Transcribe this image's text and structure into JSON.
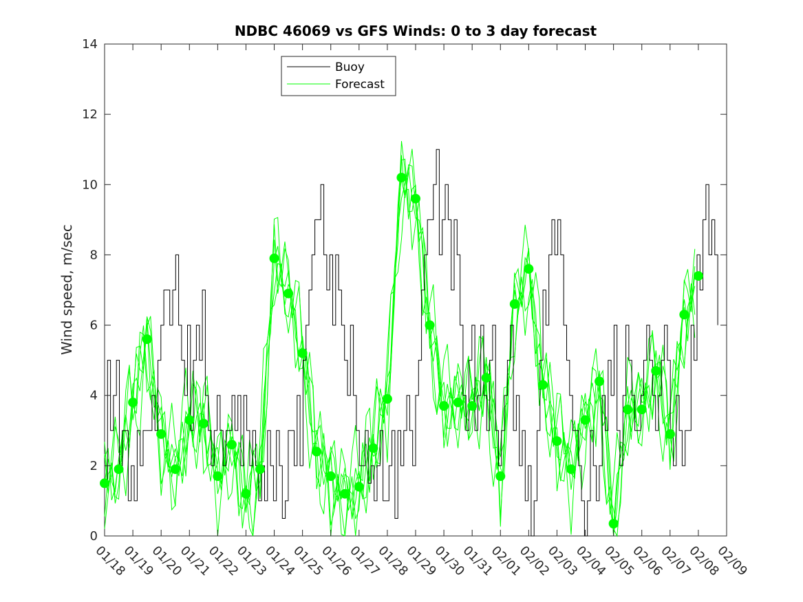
{
  "chart_data": {
    "type": "line",
    "title": "NDBC 46069 vs GFS Winds: 0 to 3 day forecast",
    "xlabel": "",
    "ylabel": "Wind speed, m/sec",
    "ylim": [
      0,
      14
    ],
    "yticks": [
      "0",
      "2",
      "4",
      "6",
      "8",
      "10",
      "12",
      "14"
    ],
    "xticks": [
      "01/18",
      "01/19",
      "01/20",
      "01/21",
      "01/22",
      "01/23",
      "01/24",
      "01/25",
      "01/26",
      "01/27",
      "01/28",
      "01/29",
      "01/30",
      "01/31",
      "02/01",
      "02/02",
      "02/03",
      "02/04",
      "02/05",
      "02/06",
      "02/07",
      "02/08",
      "02/09"
    ],
    "grid": false,
    "legend_position": "top-center",
    "colors": {
      "buoy": "#000000",
      "forecast": "#00ff00",
      "axis": "#262626"
    },
    "series": [
      {
        "name": "Buoy",
        "day_offset_start": 0,
        "values": [
          1.5,
          5,
          3,
          4,
          5,
          2,
          3,
          3,
          1,
          2,
          1,
          3,
          2,
          3,
          3,
          3,
          4,
          3,
          5,
          6,
          7,
          7,
          6,
          7,
          8,
          6,
          5,
          4,
          6,
          3,
          5,
          6,
          5,
          7,
          4,
          3,
          2,
          3,
          4,
          3,
          2,
          3,
          3,
          4,
          3,
          4,
          2,
          4,
          3,
          2,
          3,
          2,
          1,
          2,
          1,
          3,
          2,
          1,
          3,
          2,
          0.5,
          1,
          3,
          3,
          2,
          4,
          2,
          5,
          6,
          7,
          8,
          9,
          9,
          10,
          8,
          7,
          8,
          6,
          8,
          7,
          6,
          5,
          4,
          6,
          4,
          3,
          2,
          2,
          3,
          1.5,
          2,
          1,
          2,
          3,
          1,
          1,
          2,
          3,
          0.5,
          3,
          2,
          3,
          4,
          3,
          2,
          4,
          5,
          7,
          8,
          9,
          9,
          10,
          11,
          8,
          9,
          10,
          9,
          7,
          9,
          8,
          6,
          4,
          3,
          5,
          6,
          3,
          4,
          6,
          4,
          3,
          5,
          6,
          3,
          2,
          3,
          4,
          5,
          6,
          3,
          4,
          2,
          3,
          1,
          2,
          0,
          1,
          3,
          5,
          7,
          6,
          8,
          9,
          8,
          9,
          8,
          6,
          5,
          4,
          3,
          3,
          2,
          1,
          0,
          1,
          3,
          2,
          1,
          2,
          4,
          3,
          5,
          4,
          6,
          3,
          2,
          4,
          6,
          5,
          4,
          3,
          3,
          4,
          5,
          6,
          5,
          4,
          3,
          4,
          5,
          6,
          5,
          3,
          2,
          4,
          3,
          2,
          3,
          3,
          6,
          5,
          8,
          7,
          9,
          10,
          8,
          9,
          8,
          6
        ],
        "note_step_hours": 3
      },
      {
        "name": "Forecast",
        "values": [
          1.5,
          1.9,
          3.8,
          5.6,
          2.9,
          1.9,
          3.3,
          3.2,
          1.7,
          2.6,
          1.2,
          1.9,
          7.9,
          6.9,
          5.2,
          2.4,
          1.7,
          1.2,
          1.4,
          2.5,
          3.9,
          10.2,
          9.6,
          6.0,
          3.7,
          3.8,
          3.7,
          4.5,
          1.7,
          6.6,
          7.6,
          4.3,
          2.7,
          1.9,
          3.3,
          4.4,
          0.35,
          3.6,
          3.6,
          4.7,
          2.9,
          6.3,
          7.4
        ],
        "days": [
          0,
          0.5,
          1,
          1.5,
          2,
          2.5,
          3,
          3.5,
          4,
          4.5,
          5,
          5.5,
          6,
          6.5,
          7,
          7.5,
          8,
          8.5,
          9,
          9.5,
          10,
          10.5,
          11,
          11.5,
          12,
          12.5,
          13,
          13.5,
          14,
          14.5,
          15,
          15.5,
          16,
          16.5,
          17,
          17.5,
          18,
          18.5,
          19,
          19.5,
          20,
          20.5,
          21
        ]
      }
    ]
  }
}
